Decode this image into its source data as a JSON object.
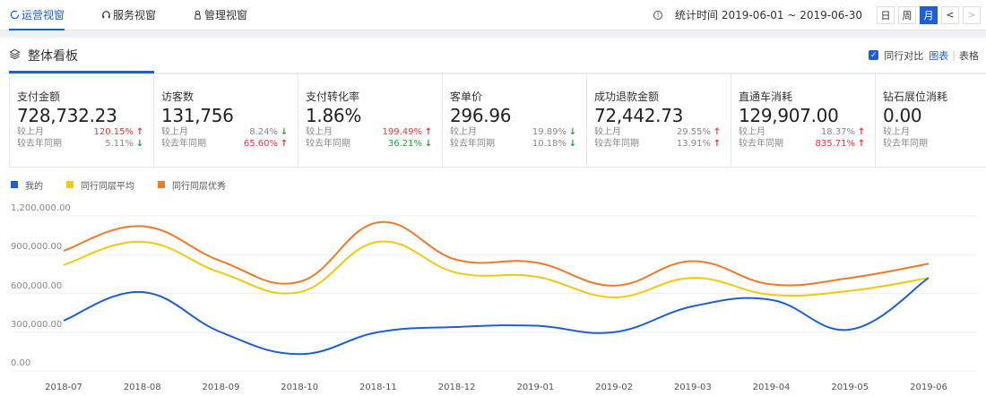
{
  "topbar": {
    "tabs": [
      {
        "label": "运营视窗",
        "icon": "refresh-circle-icon",
        "active": true
      },
      {
        "label": "服务视窗",
        "icon": "headset-icon",
        "active": false
      },
      {
        "label": "管理视窗",
        "icon": "person-icon",
        "active": false
      }
    ],
    "stat_time": "统计时间 2019-06-01 ~ 2019-06-30",
    "period_buttons": [
      {
        "label": "日",
        "active": false
      },
      {
        "label": "周",
        "active": false
      },
      {
        "label": "月",
        "active": true
      }
    ],
    "prev_label": "<",
    "next_label": ">"
  },
  "board": {
    "title": "整体看板",
    "compare_label": "同行对比",
    "compare_checked": true,
    "view_chart": "图表",
    "view_sep": "|",
    "view_table": "表格"
  },
  "cards": [
    {
      "label": "支付金额",
      "value": "728,732.23",
      "mom_label": "较上月",
      "mom": "120.15%",
      "mom_dir": "up",
      "mom_color": "red",
      "yoy_label": "较去年同期",
      "yoy": "5.11%",
      "yoy_dir": "down",
      "yoy_color": "gray",
      "active": true
    },
    {
      "label": "访客数",
      "value": "131,756",
      "mom_label": "较上月",
      "mom": "8.24%",
      "mom_dir": "down",
      "mom_color": "gray",
      "yoy_label": "较去年同期",
      "yoy": "65.60%",
      "yoy_dir": "up",
      "yoy_color": "red"
    },
    {
      "label": "支付转化率",
      "value": "1.86%",
      "mom_label": "较上月",
      "mom": "199.49%",
      "mom_dir": "up",
      "mom_color": "red",
      "yoy_label": "较去年同期",
      "yoy": "36.21%",
      "yoy_dir": "down",
      "yoy_color": "green"
    },
    {
      "label": "客单价",
      "value": "296.96",
      "mom_label": "较上月",
      "mom": "19.89%",
      "mom_dir": "down",
      "mom_color": "gray",
      "yoy_label": "较去年同期",
      "yoy": "10.18%",
      "yoy_dir": "down",
      "yoy_color": "gray"
    },
    {
      "label": "成功退款金额",
      "value": "72,442.73",
      "mom_label": "较上月",
      "mom": "29.55%",
      "mom_dir": "up",
      "mom_color": "gray",
      "yoy_label": "较去年同期",
      "yoy": "13.91%",
      "yoy_dir": "up",
      "yoy_color": "gray"
    },
    {
      "label": "直通车消耗",
      "value": "129,907.00",
      "mom_label": "较上月",
      "mom": "18.37%",
      "mom_dir": "up",
      "mom_color": "gray",
      "yoy_label": "较去年同期",
      "yoy": "835.71%",
      "yoy_dir": "up",
      "yoy_color": "red"
    },
    {
      "label": "钻石展位消耗",
      "value": "0.00",
      "mom_label": "较上月",
      "mom": "-",
      "mom_dir": "",
      "mom_color": "gray",
      "yoy_label": "较去年同期",
      "yoy": "-",
      "yoy_dir": "",
      "yoy_color": "gray"
    }
  ],
  "colors": {
    "accent": "#1f5fd6",
    "mine": "#1f5fd6",
    "avg": "#f2c811",
    "best": "#f07a2c",
    "up": "#e5383b",
    "down": "#2a9c3c"
  },
  "chart_data": {
    "type": "line",
    "title": "",
    "xlabel": "",
    "ylabel": "",
    "ylim": [
      0,
      1200000
    ],
    "yticks": [
      "1,200,000.00",
      "900,000.00",
      "600,000.00",
      "300,000.00",
      "0.00"
    ],
    "grid": true,
    "legend_position": "top-left",
    "categories": [
      "2018-07",
      "2018-08",
      "2018-09",
      "2018-10",
      "2018-11",
      "2018-12",
      "2019-01",
      "2019-02",
      "2019-03",
      "2019-04",
      "2019-05",
      "2019-06"
    ],
    "series": [
      {
        "name": "我的",
        "color": "#1f5fd6",
        "values": [
          390000,
          610000,
          300000,
          130000,
          300000,
          340000,
          350000,
          300000,
          500000,
          550000,
          320000,
          720000
        ]
      },
      {
        "name": "同行同层平均",
        "color": "#f2c811",
        "values": [
          820000,
          1000000,
          760000,
          610000,
          1000000,
          760000,
          730000,
          570000,
          720000,
          590000,
          620000,
          720000
        ]
      },
      {
        "name": "同行同层优秀",
        "color": "#f07a2c",
        "values": [
          930000,
          1120000,
          850000,
          690000,
          1150000,
          860000,
          840000,
          660000,
          850000,
          670000,
          720000,
          830000
        ]
      }
    ]
  }
}
